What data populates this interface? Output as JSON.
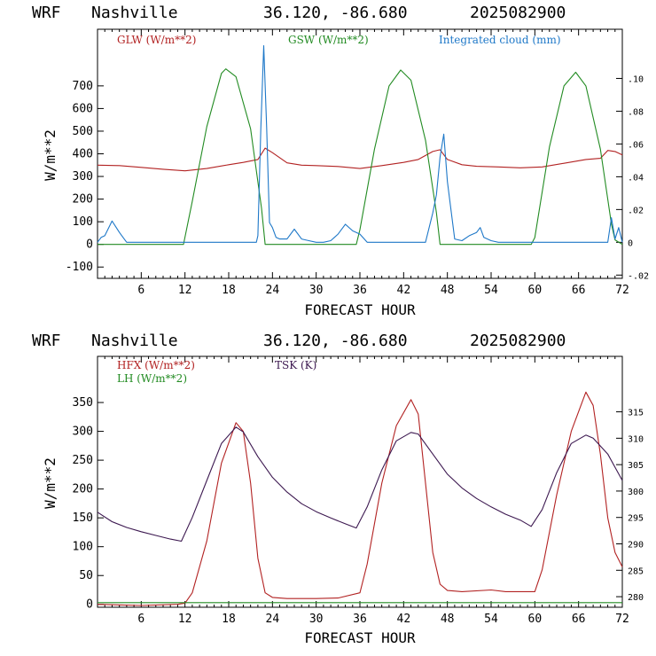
{
  "chart_data": [
    {
      "type": "line",
      "header": {
        "model": "WRF",
        "location": "Nashville",
        "coords": "36.120, -86.680",
        "run": "2025082900"
      },
      "xlabel": "FORECAST HOUR",
      "ylabel": "W/m**2",
      "xlim": [
        0,
        72
      ],
      "ylim": [
        -150,
        950
      ],
      "y2lim": [
        -0.022,
        0.13
      ],
      "xticks": [
        6,
        12,
        18,
        24,
        30,
        36,
        42,
        48,
        54,
        60,
        66,
        72
      ],
      "yticks": [
        -100,
        0,
        100,
        200,
        300,
        400,
        500,
        600,
        700
      ],
      "y2ticks": [
        {
          "v": -0.02,
          "label": "-.02"
        },
        {
          "v": 0,
          "label": "0"
        },
        {
          "v": 0.02,
          "label": ".02"
        },
        {
          "v": 0.04,
          "label": ".04"
        },
        {
          "v": 0.06,
          "label": ".06"
        },
        {
          "v": 0.08,
          "label": ".08"
        },
        {
          "v": 0.1,
          "label": ".10"
        }
      ],
      "series": [
        {
          "name": "GLW (W/m**2)",
          "axis": "left",
          "color": "#b22222",
          "x": [
            0,
            3,
            6,
            9,
            12,
            15,
            18,
            20,
            22,
            23,
            24,
            26,
            28,
            30,
            33,
            36,
            39,
            42,
            44,
            46,
            47,
            48,
            50,
            52,
            55,
            58,
            61,
            64,
            67,
            69,
            70,
            71,
            72
          ],
          "y": [
            350,
            348,
            340,
            332,
            325,
            335,
            352,
            362,
            375,
            425,
            405,
            360,
            350,
            348,
            344,
            335,
            348,
            362,
            375,
            410,
            418,
            375,
            352,
            345,
            342,
            338,
            342,
            358,
            375,
            380,
            415,
            410,
            395
          ]
        },
        {
          "name": "GSW (W/m**2)",
          "axis": "left",
          "color": "#228b22",
          "x": [
            0,
            11.8,
            13,
            15,
            17,
            17.6,
            19,
            21,
            22.5,
            23,
            24,
            35.5,
            36,
            38,
            40,
            41.6,
            43,
            45,
            46.5,
            47,
            48,
            59.5,
            60,
            62,
            64,
            65.6,
            67,
            69,
            70.5,
            71,
            72
          ],
          "y": [
            0,
            0,
            190,
            520,
            755,
            775,
            740,
            510,
            160,
            0,
            0,
            0,
            65,
            420,
            700,
            770,
            725,
            460,
            140,
            0,
            0,
            0,
            30,
            430,
            700,
            760,
            700,
            420,
            90,
            20,
            0
          ]
        },
        {
          "name": "Integrated cloud (mm)",
          "axis": "right",
          "color": "#1e78c8",
          "x": [
            0,
            0.5,
            1,
            2,
            3,
            3.5,
            4,
            21.8,
            22,
            22.4,
            22.8,
            23.2,
            23.6,
            24,
            24.5,
            25,
            26,
            27,
            28,
            29,
            30,
            31,
            32,
            32.5,
            33,
            34,
            35,
            36,
            37,
            45,
            46,
            46.5,
            47,
            47.5,
            48,
            49,
            50,
            51,
            52,
            52.5,
            53,
            53.5,
            54,
            55,
            56,
            70,
            70.5,
            71,
            71.5,
            72
          ],
          "y": [
            0,
            0.003,
            0.004,
            0.013,
            0.006,
            0.003,
            0,
            0,
            0.004,
            0.069,
            0.12,
            0.07,
            0.012,
            0.009,
            0.003,
            0.002,
            0.002,
            0.008,
            0.002,
            0.001,
            0,
            0,
            0.001,
            0.003,
            0.005,
            0.011,
            0.007,
            0.005,
            0,
            0,
            0.018,
            0.029,
            0.052,
            0.066,
            0.037,
            0.002,
            0.001,
            0.004,
            0.006,
            0.009,
            0.003,
            0.002,
            0.001,
            0,
            0,
            0,
            0.015,
            0.002,
            0.009,
            0
          ]
        }
      ],
      "legend": [
        "GLW (W/m**2)",
        "GSW (W/m**2)",
        "Integrated cloud (mm)"
      ],
      "legend_position": "top"
    },
    {
      "type": "line",
      "header": {
        "model": "WRF",
        "location": "Nashville",
        "coords": "36.120, -86.680",
        "run": "2025082900"
      },
      "xlabel": "FORECAST HOUR",
      "ylabel": "W/m**2",
      "xlim": [
        0,
        72
      ],
      "ylim": [
        -5,
        430
      ],
      "y2lim": [
        278,
        325.5
      ],
      "xticks": [
        6,
        12,
        18,
        24,
        30,
        36,
        42,
        48,
        54,
        60,
        66,
        72
      ],
      "yticks": [
        0,
        50,
        100,
        150,
        200,
        250,
        300,
        350
      ],
      "y2ticks": [
        {
          "v": 280,
          "label": "280"
        },
        {
          "v": 285,
          "label": "285"
        },
        {
          "v": 290,
          "label": "290"
        },
        {
          "v": 295,
          "label": "295"
        },
        {
          "v": 300,
          "label": "300"
        },
        {
          "v": 305,
          "label": "305"
        },
        {
          "v": 310,
          "label": "310"
        },
        {
          "v": 315,
          "label": "315"
        }
      ],
      "series": [
        {
          "name": "HFX (W/m**2)",
          "axis": "left",
          "color": "#b22222",
          "x": [
            0,
            6,
            11,
            12,
            13,
            15,
            17,
            19,
            20,
            21,
            22,
            23,
            24,
            26,
            30,
            33,
            36,
            37,
            39,
            41,
            43,
            44,
            45,
            46,
            47,
            48,
            50,
            54,
            56,
            60,
            61,
            63,
            65,
            67,
            68,
            69,
            70,
            71,
            72
          ],
          "y": [
            0,
            -2,
            0,
            2,
            20,
            110,
            245,
            315,
            300,
            210,
            80,
            20,
            12,
            10,
            10,
            11,
            20,
            70,
            210,
            310,
            355,
            330,
            210,
            90,
            35,
            24,
            22,
            25,
            22,
            22,
            60,
            190,
            300,
            368,
            345,
            260,
            150,
            90,
            65
          ]
        },
        {
          "name": "LH (W/m**2)",
          "axis": "left",
          "color": "#228b22",
          "x": [
            0,
            72
          ],
          "y": [
            3,
            3
          ]
        },
        {
          "name": "TSK (K)",
          "axis": "right",
          "color": "#3c1850",
          "x": [
            0,
            2,
            4,
            6,
            8,
            10,
            11.5,
            13,
            15,
            17,
            19,
            20,
            22,
            24,
            26,
            28,
            30,
            32,
            34,
            35.5,
            37,
            39,
            41,
            43,
            44,
            46,
            48,
            50,
            52,
            54,
            56,
            58,
            59.5,
            61,
            63,
            65,
            67,
            68,
            70,
            71,
            72
          ],
          "y": [
            296,
            294.2,
            293.1,
            292.3,
            291.6,
            290.9,
            290.5,
            295,
            302,
            309,
            312.1,
            311.2,
            306.5,
            302.6,
            299.8,
            297.6,
            296.1,
            294.9,
            293.8,
            293,
            297,
            304,
            309.5,
            311.1,
            310.8,
            307,
            303.2,
            300.6,
            298.6,
            297,
            295.6,
            294.5,
            293.3,
            296.5,
            303.5,
            309,
            310.6,
            310,
            307,
            304.5,
            302
          ]
        }
      ],
      "legend": [
        "HFX (W/m**2)",
        "LH (W/m**2)",
        "TSK (K)"
      ],
      "legend_position": "top-left"
    }
  ]
}
